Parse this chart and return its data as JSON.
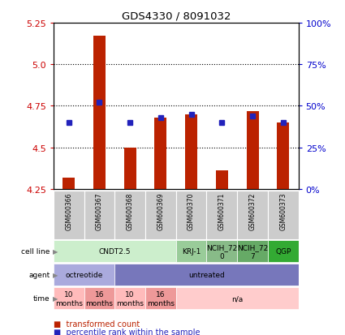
{
  "title": "GDS4330 / 8091032",
  "samples": [
    "GSM600366",
    "GSM600367",
    "GSM600368",
    "GSM600369",
    "GSM600370",
    "GSM600371",
    "GSM600372",
    "GSM600373"
  ],
  "red_values": [
    4.32,
    5.17,
    4.5,
    4.68,
    4.7,
    4.36,
    4.72,
    4.65
  ],
  "blue_values": [
    4.65,
    4.77,
    4.65,
    4.68,
    4.7,
    4.65,
    4.69,
    4.65
  ],
  "ylim": [
    4.25,
    5.25
  ],
  "yticks_left": [
    4.25,
    4.5,
    4.75,
    5.0,
    5.25
  ],
  "yticks_right": [
    0,
    25,
    50,
    75,
    100
  ],
  "ytick_labels_right": [
    "0%",
    "25%",
    "50%",
    "75%",
    "100%"
  ],
  "red_color": "#bb2200",
  "blue_color": "#2222bb",
  "bar_width": 0.4,
  "cell_line_groups": [
    {
      "label": "CNDT2.5",
      "start": 0,
      "end": 4,
      "color": "#cceecc"
    },
    {
      "label": "KRJ-1",
      "start": 4,
      "end": 5,
      "color": "#99cc99"
    },
    {
      "label": "NCIH_72\n0",
      "start": 5,
      "end": 6,
      "color": "#88bb88"
    },
    {
      "label": "NCIH_72\n7",
      "start": 6,
      "end": 7,
      "color": "#66aa66"
    },
    {
      "label": "QGP",
      "start": 7,
      "end": 8,
      "color": "#33aa33"
    }
  ],
  "agent_groups": [
    {
      "label": "octreotide",
      "start": 0,
      "end": 2,
      "color": "#aaaadd"
    },
    {
      "label": "untreated",
      "start": 2,
      "end": 8,
      "color": "#7777bb"
    }
  ],
  "time_groups": [
    {
      "label": "10\nmonths",
      "start": 0,
      "end": 1,
      "color": "#ffbbbb"
    },
    {
      "label": "16\nmonths",
      "start": 1,
      "end": 2,
      "color": "#ee9999"
    },
    {
      "label": "10\nmonths",
      "start": 2,
      "end": 3,
      "color": "#ffbbbb"
    },
    {
      "label": "16\nmonths",
      "start": 3,
      "end": 4,
      "color": "#ee9999"
    },
    {
      "label": "n/a",
      "start": 4,
      "end": 8,
      "color": "#ffcccc"
    }
  ],
  "row_labels": [
    "cell line",
    "agent",
    "time"
  ],
  "legend_red": "transformed count",
  "legend_blue": "percentile rank within the sample",
  "bg_color": "#ffffff",
  "tick_color_left": "#cc0000",
  "tick_color_right": "#0000cc",
  "sample_bg": "#cccccc",
  "grid_lines": [
    5.0,
    4.75,
    4.5
  ]
}
